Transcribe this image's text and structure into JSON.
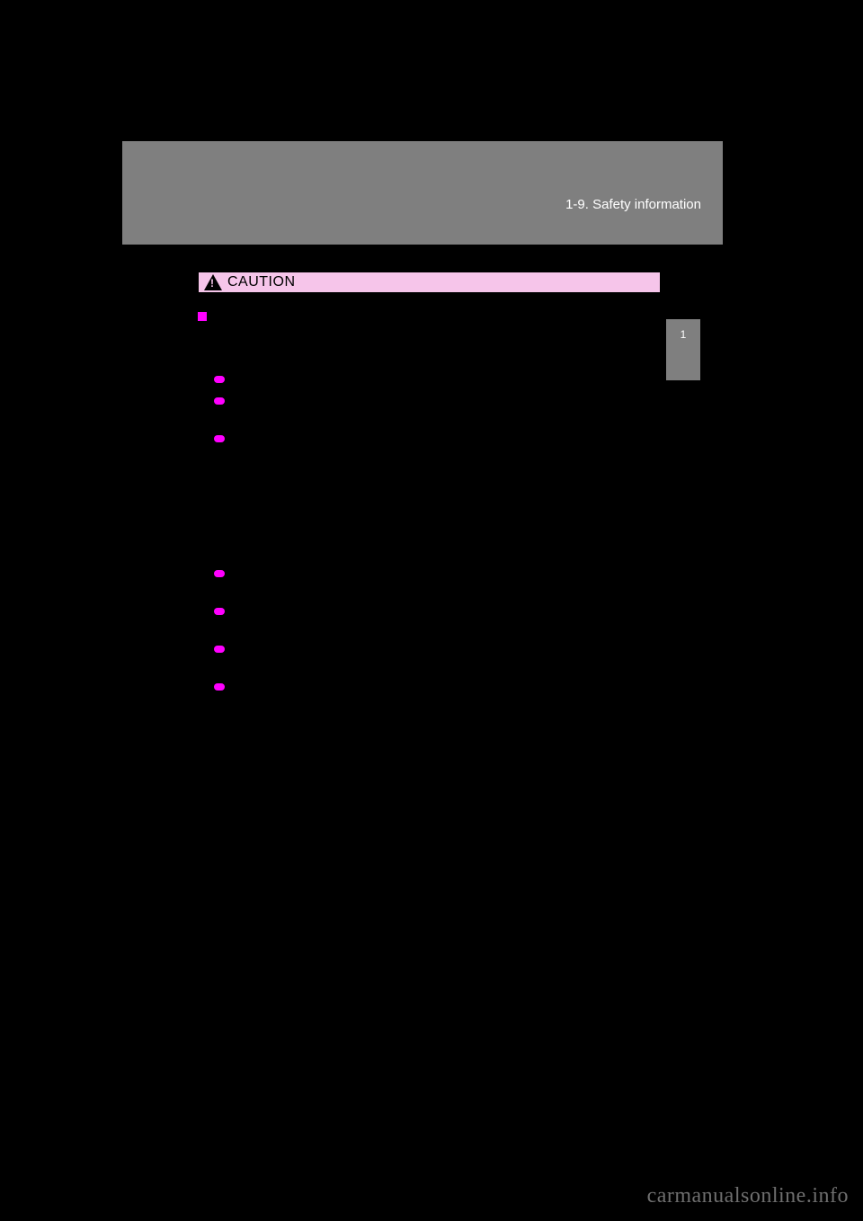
{
  "header": {
    "breadcrumb": "1-9. Safety information"
  },
  "side_tab": {
    "label": "1"
  },
  "caution": {
    "label": "CAUTION"
  },
  "section": {
    "title": "",
    "intro": ""
  },
  "bullets": [
    {
      "text": "",
      "h": "h1"
    },
    {
      "text": "",
      "h": "h2"
    },
    {
      "text": "",
      "h": "h7"
    },
    {
      "text": "",
      "h": "h2"
    },
    {
      "text": "",
      "h": "h2"
    },
    {
      "text": "",
      "h": "h2"
    },
    {
      "text": "",
      "h": "h2"
    }
  ],
  "watermark": "carmanualsonline.info",
  "colors": {
    "accent": "#ff00ff",
    "header_bg": "#7f7f7f",
    "caution_bg": "#f6c5ea",
    "page_bg": "#000000"
  }
}
